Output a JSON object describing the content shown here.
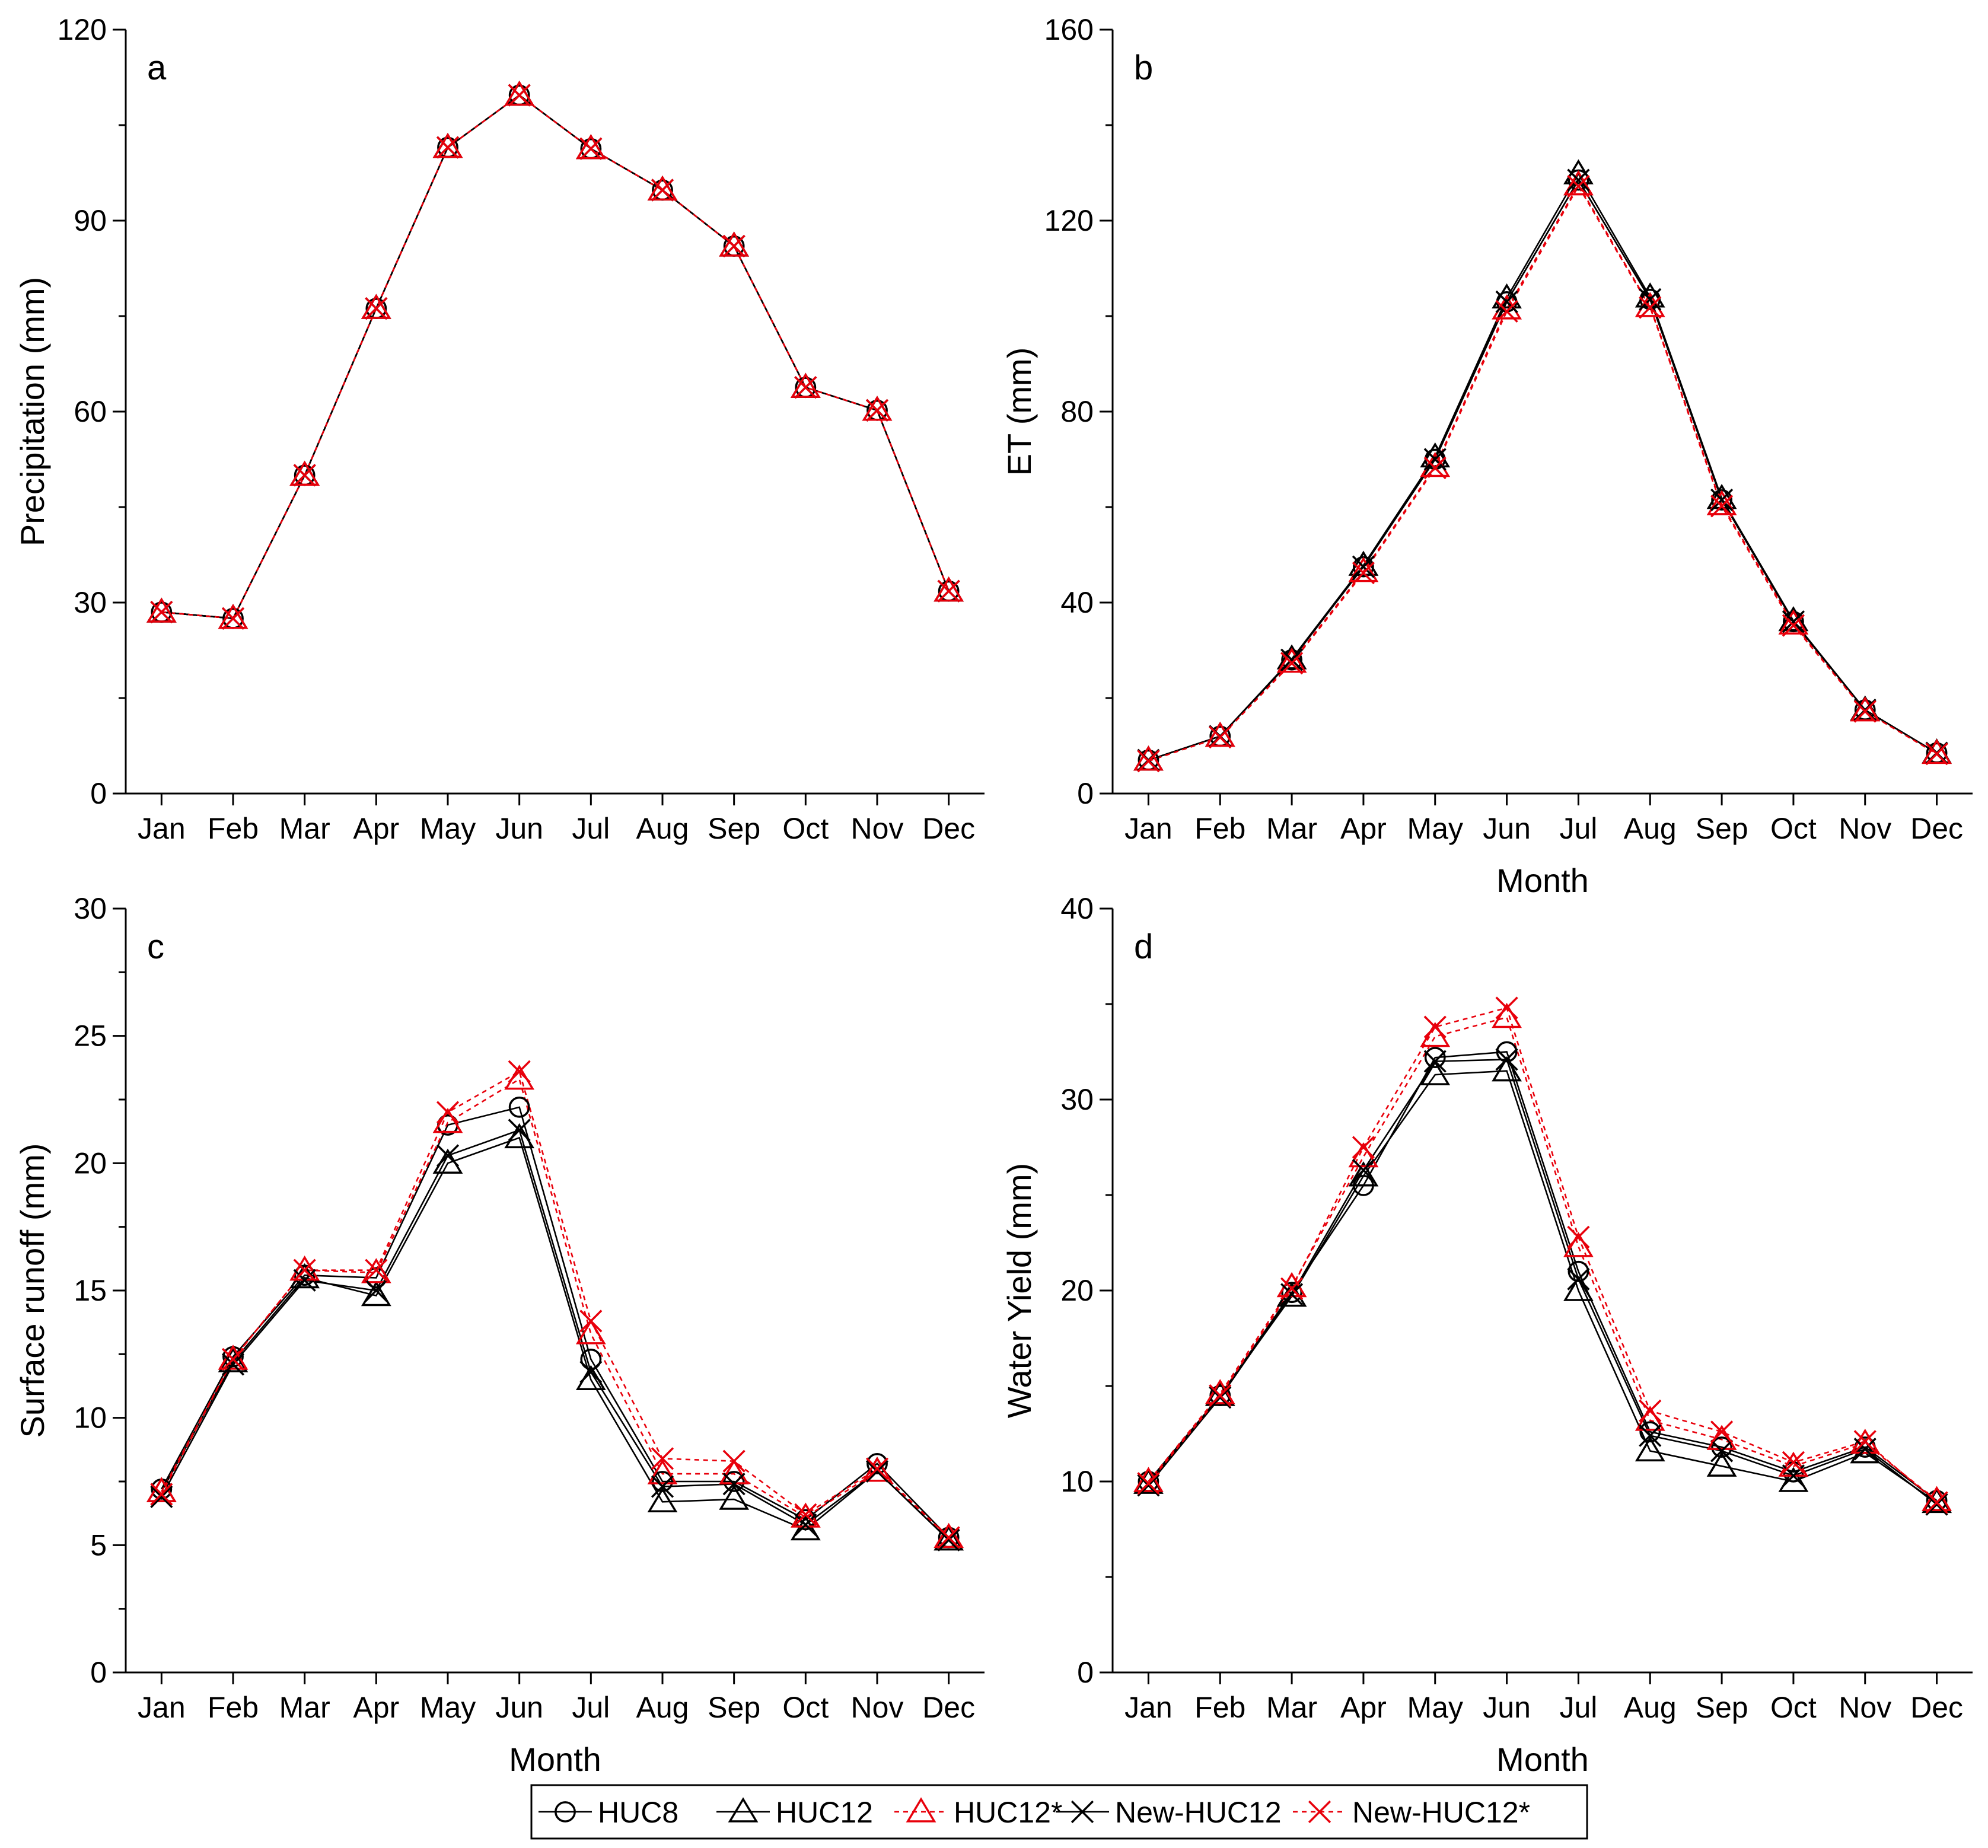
{
  "chart_data": [
    {
      "type": "line",
      "panel": "a",
      "xlabel": "",
      "ylabel": "Precipitation (mm)",
      "ylim": [
        0,
        120
      ],
      "yticks": [
        0,
        30,
        60,
        90,
        120
      ],
      "categories": [
        "Jan",
        "Feb",
        "Mar",
        "Apr",
        "May",
        "Jun",
        "Jul",
        "Aug",
        "Sep",
        "Oct",
        "Nov",
        "Dec"
      ],
      "series": [
        {
          "name": "HUC8",
          "values": [
            28.5,
            27.5,
            50,
            76.2,
            101.5,
            109.7,
            101.3,
            94.8,
            86,
            63.8,
            60.2,
            31.8
          ]
        },
        {
          "name": "HUC12",
          "values": [
            28.5,
            27.5,
            50,
            76.2,
            101.5,
            109.7,
            101.3,
            94.8,
            86,
            63.8,
            60.2,
            31.8
          ]
        },
        {
          "name": "HUC12*",
          "values": [
            28.5,
            27.5,
            50,
            76.2,
            101.5,
            109.7,
            101.3,
            94.8,
            86,
            63.8,
            60.2,
            31.8
          ]
        },
        {
          "name": "New-HUC12",
          "values": [
            28.5,
            27.5,
            50,
            76.2,
            101.5,
            109.7,
            101.3,
            94.8,
            86,
            63.8,
            60.2,
            31.8
          ]
        },
        {
          "name": "New-HUC12*",
          "values": [
            28.5,
            27.5,
            50,
            76.2,
            101.5,
            109.7,
            101.3,
            94.8,
            86,
            63.8,
            60.2,
            31.8
          ]
        }
      ]
    },
    {
      "type": "line",
      "panel": "b",
      "xlabel": "Month",
      "ylabel": "ET (mm)",
      "ylim": [
        0,
        160
      ],
      "yticks": [
        0,
        40,
        80,
        120,
        160
      ],
      "categories": [
        "Jan",
        "Feb",
        "Mar",
        "Apr",
        "May",
        "Jun",
        "Jul",
        "Aug",
        "Sep",
        "Oct",
        "Nov",
        "Dec"
      ],
      "series": [
        {
          "name": "HUC8",
          "values": [
            7,
            12,
            28,
            47.5,
            70,
            103,
            128.5,
            103.5,
            61.5,
            36,
            17.5,
            8.5
          ]
        },
        {
          "name": "HUC12",
          "values": [
            7,
            12,
            28.2,
            47.8,
            70.5,
            103.8,
            129.8,
            104,
            61.8,
            36.2,
            17.5,
            8.5
          ]
        },
        {
          "name": "HUC12*",
          "values": [
            7,
            12,
            27.5,
            46.5,
            68.5,
            101.5,
            127.5,
            102,
            60.5,
            35.5,
            17.3,
            8.4
          ]
        },
        {
          "name": "New-HUC12",
          "values": [
            7,
            12,
            28,
            47.5,
            70,
            103,
            128.5,
            103.5,
            61.5,
            36,
            17.5,
            8.5
          ]
        },
        {
          "name": "New-HUC12*",
          "values": [
            6.8,
            11.8,
            27.3,
            46.2,
            68.2,
            101,
            127.2,
            101.8,
            60.2,
            35.2,
            17.2,
            8.3
          ]
        }
      ]
    },
    {
      "type": "line",
      "panel": "c",
      "xlabel": "Month",
      "ylabel": "Surface runoff (mm)",
      "ylim": [
        0,
        30
      ],
      "yticks": [
        0,
        5,
        10,
        15,
        20,
        25,
        30
      ],
      "categories": [
        "Jan",
        "Feb",
        "Mar",
        "Apr",
        "May",
        "Jun",
        "Jul",
        "Aug",
        "Sep",
        "Oct",
        "Nov",
        "Dec"
      ],
      "series": [
        {
          "name": "HUC8",
          "values": [
            7.2,
            12.4,
            15.6,
            15.5,
            21.5,
            22.2,
            12.3,
            7.5,
            7.5,
            6.0,
            8.2,
            5.3
          ]
        },
        {
          "name": "HUC12",
          "values": [
            7.1,
            12.2,
            15.5,
            14.8,
            20.0,
            21.0,
            11.5,
            6.7,
            6.8,
            5.6,
            7.9,
            5.2
          ]
        },
        {
          "name": "HUC12*",
          "values": [
            7.1,
            12.3,
            15.8,
            15.7,
            21.6,
            23.3,
            13.3,
            7.8,
            7.8,
            6.1,
            7.9,
            5.3
          ]
        },
        {
          "name": "New-HUC12",
          "values": [
            6.9,
            12.1,
            15.4,
            15.0,
            20.3,
            21.3,
            11.8,
            7.3,
            7.4,
            5.8,
            7.9,
            5.2
          ]
        },
        {
          "name": "New-HUC12*",
          "values": [
            7.0,
            12.3,
            15.8,
            15.8,
            22.0,
            23.6,
            13.8,
            8.4,
            8.3,
            6.2,
            8.0,
            5.3
          ]
        }
      ]
    },
    {
      "type": "line",
      "panel": "d",
      "xlabel": "Month",
      "ylabel": "Water Yield (mm)",
      "ylim": [
        0,
        40
      ],
      "yticks": [
        0,
        10,
        20,
        30,
        40
      ],
      "categories": [
        "Jan",
        "Feb",
        "Mar",
        "Apr",
        "May",
        "Jun",
        "Jul",
        "Aug",
        "Sep",
        "Oct",
        "Nov",
        "Dec"
      ],
      "series": [
        {
          "name": "HUC8",
          "values": [
            10.0,
            14.5,
            19.9,
            25.5,
            32.2,
            32.5,
            21.0,
            12.6,
            11.8,
            10.5,
            11.8,
            9.0
          ]
        },
        {
          "name": "HUC12",
          "values": [
            9.9,
            14.5,
            19.7,
            26.0,
            31.3,
            31.5,
            20.0,
            11.6,
            10.8,
            10.0,
            11.5,
            8.9
          ]
        },
        {
          "name": "HUC12*",
          "values": [
            10.0,
            14.6,
            20.2,
            27.0,
            33.3,
            34.3,
            22.3,
            13.2,
            12.2,
            10.8,
            12.0,
            9.0
          ]
        },
        {
          "name": "New-HUC12",
          "values": [
            9.8,
            14.4,
            19.8,
            26.3,
            32.0,
            32.1,
            20.6,
            12.4,
            11.6,
            10.3,
            11.7,
            8.8
          ]
        },
        {
          "name": "New-HUC12*",
          "values": [
            9.9,
            14.5,
            20.1,
            27.5,
            33.8,
            34.8,
            22.8,
            13.7,
            12.6,
            11.0,
            12.1,
            8.9
          ]
        }
      ]
    }
  ],
  "panel_letters": [
    "a",
    "b",
    "c",
    "d"
  ],
  "legend": {
    "items": [
      {
        "name": "HUC8",
        "marker": "circle",
        "color": "#000000",
        "dash": "solid"
      },
      {
        "name": "HUC12",
        "marker": "triangle",
        "color": "#000000",
        "dash": "solid"
      },
      {
        "name": "HUC12*",
        "marker": "triangle",
        "color": "#e8000b",
        "dash": "dotted"
      },
      {
        "name": "New-HUC12",
        "marker": "cross",
        "color": "#000000",
        "dash": "solid"
      },
      {
        "name": "New-HUC12*",
        "marker": "cross",
        "color": "#e8000b",
        "dash": "dotted"
      }
    ]
  },
  "colors": {
    "black": "#000000",
    "red": "#e8000b",
    "axis": "#000000"
  }
}
